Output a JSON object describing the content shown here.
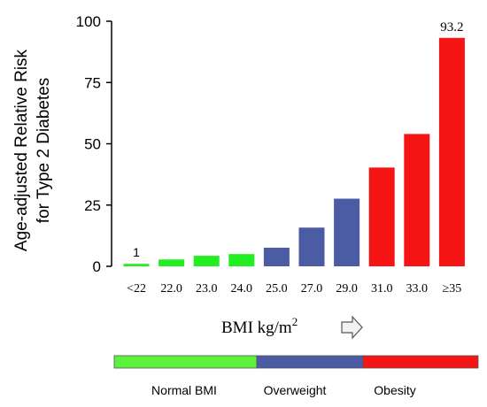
{
  "chart_data": {
    "type": "bar",
    "ylabel_lines": [
      "Age-adjusted Relative Risk",
      "for Type 2 Diabetes"
    ],
    "xlabel": "BMI kg/m",
    "xlabel_superscript": "2",
    "arrow_icon": "right-arrow-outline-icon",
    "ylim": [
      0,
      100
    ],
    "yticks": [
      "0",
      "25",
      "50",
      "75",
      "100"
    ],
    "categories": [
      "<22",
      "22.0",
      "23.0",
      "24.0",
      "25.0",
      "27.0",
      "29.0",
      "31.0",
      "33.0",
      "≥35"
    ],
    "values": [
      1,
      2.8,
      4.3,
      5.0,
      7.6,
      15.8,
      27.6,
      40.3,
      54.0,
      93.2
    ],
    "bar_groups": [
      "normal",
      "normal",
      "normal",
      "normal",
      "overweight",
      "overweight",
      "overweight",
      "obesity",
      "obesity",
      "obesity"
    ],
    "data_labels": [
      {
        "index": 0,
        "text": "1"
      },
      {
        "index": 9,
        "text": "93.2"
      }
    ],
    "colors": {
      "normal": "#22ee22",
      "overweight": "#4b5ba4",
      "obesity": "#f51515"
    }
  },
  "legend_bar": {
    "segments": [
      {
        "label": "Normal BMI",
        "color": "#5cf13a"
      },
      {
        "label": "Overweight",
        "color": "#4b5ba4"
      },
      {
        "label": "Obesity",
        "color": "#f51515"
      }
    ]
  }
}
